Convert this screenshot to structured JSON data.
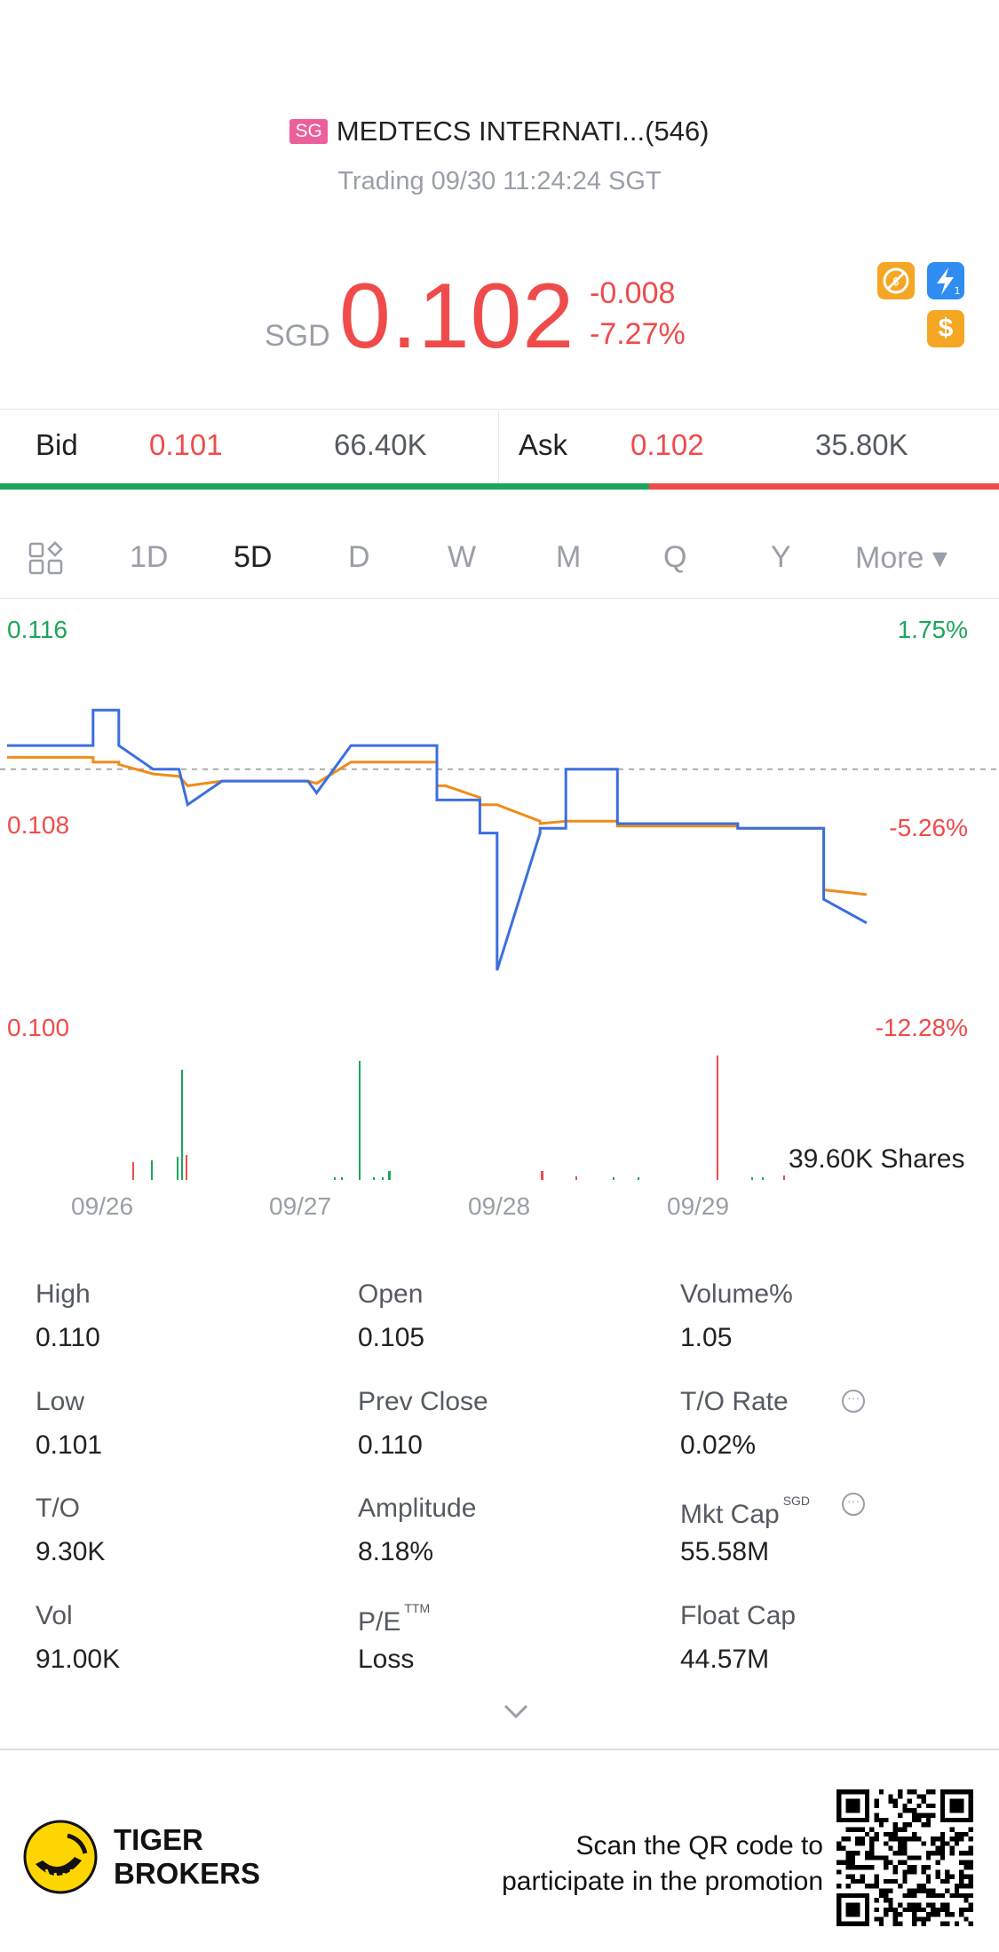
{
  "header": {
    "market_tag": "SG",
    "name": "MEDTECS INTERNATI...(546)",
    "status": "Trading 09/30 11:24:24 SGT"
  },
  "quote": {
    "currency": "SGD",
    "price": "0.102",
    "change": "-0.008",
    "change_pct": "-7.27%",
    "badges": [
      "no-dividend-icon",
      "level1-icon",
      "dollar-icon"
    ],
    "color": "#ef4b4b"
  },
  "bidask": {
    "bid_label": "Bid",
    "bid_price": "0.101",
    "bid_size": "66.40K",
    "ask_label": "Ask",
    "ask_price": "0.102",
    "ask_size": "35.80K",
    "bid_ratio": 0.65
  },
  "tabs": [
    "1D",
    "5D",
    "D",
    "W",
    "M",
    "Q",
    "Y",
    "More ▾"
  ],
  "active_tab": "5D",
  "chart": {
    "left_axis": [
      "0.116",
      "0.108",
      "0.100"
    ],
    "right_axis": [
      "1.75%",
      "-5.26%",
      "-12.28%"
    ],
    "volume_label": "39.60K Shares",
    "dates": [
      "09/26",
      "09/27",
      "09/28",
      "09/29"
    ]
  },
  "chart_data": {
    "type": "line",
    "x": [
      0,
      0.1,
      0.1,
      0.13,
      0.13,
      0.17,
      0.2,
      0.21,
      0.25,
      0.35,
      0.36,
      0.4,
      0.42,
      0.5,
      0.5,
      0.51,
      0.55,
      0.55,
      0.57,
      0.57,
      0.62,
      0.62,
      0.65,
      0.65,
      0.68,
      0.71,
      0.71,
      0.75,
      0.85,
      0.85,
      0.92,
      0.92,
      0.95,
      0.95,
      1.0
    ],
    "series": [
      {
        "values": [
          0.111,
          0.111,
          0.1125,
          0.1125,
          0.111,
          0.11,
          0.11,
          0.1085,
          0.1095,
          0.1095,
          0.109,
          0.111,
          0.111,
          0.111,
          0.1087,
          0.1087,
          0.1087,
          0.1073,
          0.1073,
          0.1015,
          0.1073,
          0.1075,
          0.1075,
          0.11,
          0.11,
          0.11,
          0.1077,
          0.1077,
          0.1077,
          0.1075,
          0.1075,
          0.1075,
          0.1075,
          0.1045,
          0.1035
        ]
      },
      {
        "values": [
          0.1105,
          0.1105,
          0.1103,
          0.1103,
          0.1102,
          0.1098,
          0.1097,
          0.1093,
          0.1095,
          0.1095,
          0.1094,
          0.1103,
          0.1103,
          0.1103,
          0.1093,
          0.1093,
          0.1088,
          0.1085,
          0.1085,
          0.1085,
          0.1078,
          0.1077,
          0.1078,
          0.1078,
          0.1078,
          0.1078,
          0.1076,
          0.1076,
          0.1076,
          0.1075,
          0.1075,
          0.1075,
          0.1075,
          0.1049,
          0.1047
        ]
      }
    ],
    "ylim": [
      0.1,
      0.116
    ],
    "prev_close": 0.11,
    "grid": false
  },
  "stats": [
    {
      "label": "High",
      "value": "0.110"
    },
    {
      "label": "Open",
      "value": "0.105"
    },
    {
      "label": "Volume%",
      "value": "1.05"
    },
    {
      "label": "Low",
      "value": "0.101"
    },
    {
      "label": "Prev Close",
      "value": "0.110"
    },
    {
      "label": "T/O Rate",
      "value": "0.02%"
    },
    {
      "label": "T/O",
      "value": "9.30K"
    },
    {
      "label": "Amplitude",
      "value": "8.18%"
    },
    {
      "label": "Mkt Cap",
      "value": "55.58M",
      "sup": "SGD"
    },
    {
      "label": "Vol",
      "value": "91.00K"
    },
    {
      "label": "P/E",
      "value": "Loss",
      "sup": "TTM"
    },
    {
      "label": "Float Cap",
      "value": "44.57M"
    }
  ],
  "footer": {
    "brand_line1": "TIGER",
    "brand_line2": "BROKERS",
    "promo_line1": "Scan the QR code to",
    "promo_line2": "participate in the promotion"
  }
}
